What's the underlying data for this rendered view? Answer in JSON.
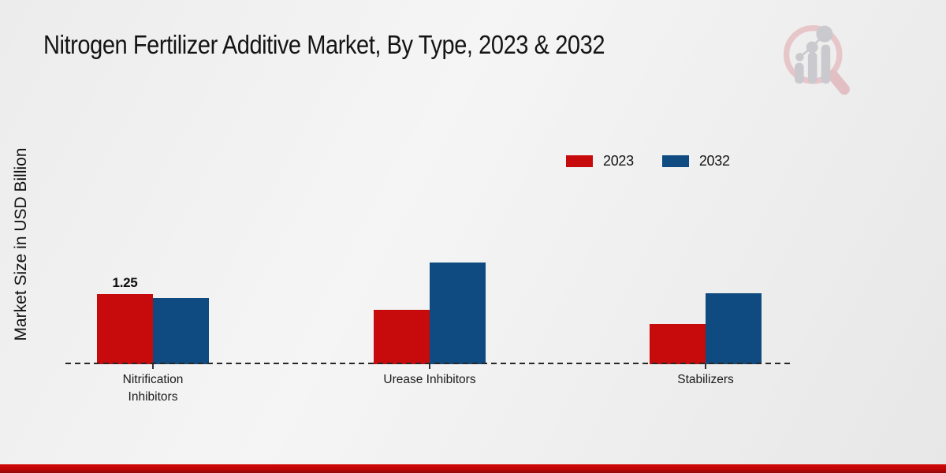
{
  "header": {
    "title": "Nitrogen Fertilizer Additive Market, By Type, 2023 & 2032"
  },
  "axis": {
    "y_label": "Market Size in USD Billion",
    "y_ticks_visible": false,
    "x_baseline_style": "dashed"
  },
  "chart_data": {
    "type": "bar",
    "title": "Nitrogen Fertilizer Additive Market, By Type, 2023 & 2032",
    "categories": [
      "Nitrification Inhibitors",
      "Urease Inhibitors",
      "Stabilizers"
    ],
    "series": [
      {
        "name": "2023",
        "color": "#c70b0c",
        "values": [
          1.25,
          0.97,
          0.71
        ],
        "data_labels": [
          "1.25",
          "",
          ""
        ]
      },
      {
        "name": "2032",
        "color": "#0f4b80",
        "values": [
          1.17,
          1.81,
          1.26
        ],
        "data_labels": [
          "",
          "",
          ""
        ]
      }
    ],
    "xlabel": "",
    "ylabel": "Market Size in USD Billion",
    "ylim": [
      0,
      2
    ],
    "grid": false,
    "legend_position": "top-right"
  },
  "watermark": {
    "name": "magnifier-bar-chart-logo",
    "ring_color": "#e7c6c9",
    "bars_color": "#c9c9ce"
  },
  "footer": {
    "strip_color": "#c00606"
  }
}
